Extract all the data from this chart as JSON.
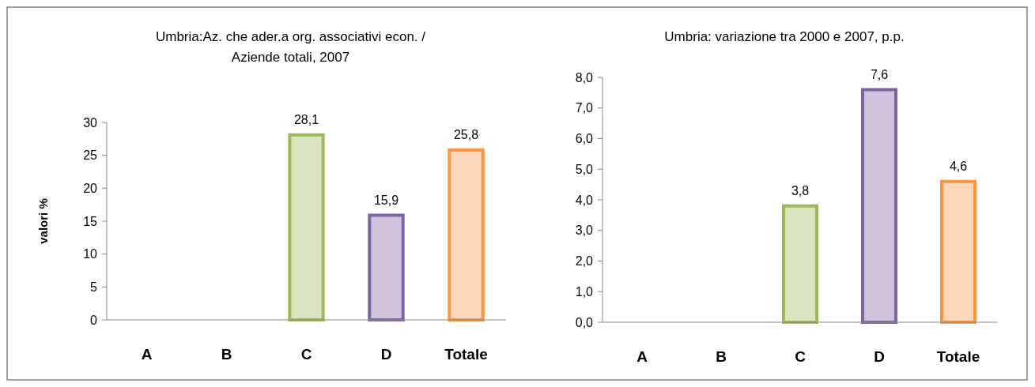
{
  "chart_data": [
    {
      "type": "bar",
      "title": "Umbria:Az. che ader.a org. associativi econ. /\nAziende totali, 2007",
      "ylabel": "valori %",
      "categories": [
        "A",
        "B",
        "C",
        "D",
        "Totale"
      ],
      "values": [
        null,
        null,
        28.1,
        15.9,
        25.8
      ],
      "colors": [
        null,
        null,
        "#9bbb59",
        "#8064a2",
        "#f79646"
      ],
      "value_labels": [
        null,
        null,
        "28,1",
        "15,9",
        "25,8"
      ],
      "ylim": [
        0,
        30
      ],
      "yticks": [
        0,
        5,
        10,
        15,
        20,
        25,
        30
      ],
      "grid": false
    },
    {
      "type": "bar",
      "title": "Umbria: variazione tra 2000 e 2007, p.p.",
      "categories": [
        "A",
        "B",
        "C",
        "D",
        "Totale"
      ],
      "values": [
        null,
        null,
        3.8,
        7.6,
        4.6
      ],
      "colors": [
        null,
        null,
        "#9bbb59",
        "#8064a2",
        "#f79646"
      ],
      "value_labels": [
        null,
        null,
        "3,8",
        "7,6",
        "4,6"
      ],
      "ylim": [
        0,
        8
      ],
      "yticks": [
        {
          "value": 0,
          "label": "0,0"
        },
        {
          "value": 1,
          "label": "1,0"
        },
        {
          "value": 2,
          "label": "2,0"
        },
        {
          "value": 3,
          "label": "3,0"
        },
        {
          "value": 4,
          "label": "4,0"
        },
        {
          "value": 5,
          "label": "5,0"
        },
        {
          "value": 6,
          "label": "6,0"
        },
        {
          "value": 7,
          "label": "7,0"
        },
        {
          "value": 8,
          "label": "8,0"
        }
      ],
      "grid": false
    }
  ]
}
